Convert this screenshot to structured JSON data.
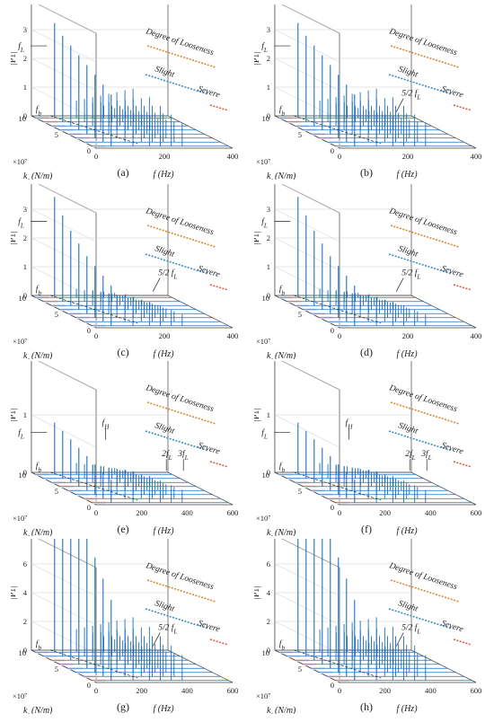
{
  "chart_data": [
    {
      "type": "line",
      "caption": "(a)",
      "zlabel": "|P1|",
      "zscale": "×10⁻⁴",
      "zticks": [
        "0",
        "1",
        "2",
        "3",
        "4"
      ],
      "zmax": 4,
      "ylabel": "k_l (N/m)",
      "yscale": "×10⁷",
      "yticks": [
        "10",
        "5",
        "0"
      ],
      "xlabel": "f (Hz)",
      "xticks": [
        "0",
        "200",
        "400"
      ],
      "xmax": 400,
      "legend": {
        "title": "Degree of Looseness",
        "slight": "Slight",
        "severe": "Severe"
      },
      "annotations": {
        "fL": "f_L",
        "fb": "f_b",
        "frac": ""
      },
      "peaks": [
        3.3,
        3.0,
        2.8,
        2.6,
        2.4,
        2.2,
        2.0,
        1.8
      ],
      "harm": [
        0.6,
        0.8,
        1.0,
        1.2,
        1.4,
        1.6,
        1.8,
        2.0
      ]
    },
    {
      "type": "line",
      "caption": "(b)",
      "zlabel": "|P1|",
      "zscale": "×10⁻⁴",
      "zticks": [
        "0",
        "1",
        "2",
        "3",
        "4"
      ],
      "zmax": 4,
      "ylabel": "k_l (N/m)",
      "yscale": "×10⁷",
      "yticks": [
        "10",
        "5",
        "0"
      ],
      "xlabel": "f (Hz)",
      "xticks": [
        "0",
        "200",
        "400"
      ],
      "xmax": 400,
      "legend": {
        "title": "Degree of Looseness",
        "slight": "Slight",
        "severe": "Severe"
      },
      "annotations": {
        "fL": "f_L",
        "fb": "f_b",
        "frac": "5/2 f_L"
      },
      "peaks": [
        3.3,
        3.0,
        2.8,
        2.6,
        2.4,
        2.2,
        2.0,
        1.8
      ],
      "harm": [
        0.6,
        0.8,
        1.0,
        1.2,
        1.4,
        1.6,
        1.8,
        2.0
      ]
    },
    {
      "type": "line",
      "caption": "(c)",
      "zlabel": "|P1|",
      "zscale": "×10⁻³",
      "zticks": [
        "0",
        "1",
        "2",
        "3",
        "4"
      ],
      "zmax": 4,
      "ylabel": "k_l (N/m)",
      "yscale": "×10⁷",
      "yticks": [
        "10",
        "5",
        "0"
      ],
      "xlabel": "f (Hz)",
      "xticks": [
        "0",
        "200",
        "400"
      ],
      "xmax": 400,
      "legend": {
        "title": "Degree of Looseness",
        "slight": "Slight",
        "severe": "Severe"
      },
      "annotations": {
        "fL": "f_L",
        "fb": "f_b",
        "frac": "5/2 f_L"
      },
      "peaks": [
        3.5,
        3.0,
        2.6,
        2.3,
        2.0,
        1.8,
        1.6,
        1.4
      ],
      "harm": [
        0.3,
        0.4,
        0.5,
        0.6,
        0.7,
        0.8,
        0.9,
        1.0
      ]
    },
    {
      "type": "line",
      "caption": "(d)",
      "zlabel": "|P1|",
      "zscale": "×10⁻³",
      "zticks": [
        "0",
        "1",
        "2",
        "3",
        "4"
      ],
      "zmax": 4,
      "ylabel": "k_l (N/m)",
      "yscale": "×10⁷",
      "yticks": [
        "10",
        "5",
        "0"
      ],
      "xlabel": "f (Hz)",
      "xticks": [
        "0",
        "200",
        "400"
      ],
      "xmax": 400,
      "legend": {
        "title": "Degree of Looseness",
        "slight": "Slight",
        "severe": "Severe"
      },
      "annotations": {
        "fL": "f_L",
        "fb": "f_b",
        "frac": "5/2 f_L"
      },
      "peaks": [
        3.5,
        3.0,
        2.6,
        2.3,
        2.0,
        1.8,
        1.6,
        1.4
      ],
      "harm": [
        0.3,
        0.4,
        0.5,
        0.6,
        0.7,
        0.8,
        0.9,
        1.0
      ]
    },
    {
      "type": "line",
      "caption": "(e)",
      "zlabel": "|P1|",
      "zscale": "×10⁻⁴",
      "zticks": [
        "0",
        "1",
        "2"
      ],
      "zmax": 2,
      "ylabel": "k_l (N/m)",
      "yscale": "×10⁷",
      "yticks": [
        "10",
        "5",
        "0"
      ],
      "xlabel": "f (Hz)",
      "xticks": [
        "0",
        "200",
        "400",
        "600"
      ],
      "xmax": 600,
      "legend": {
        "title": "Degree of Looseness",
        "slight": "Slight",
        "severe": "Severe"
      },
      "annotations": {
        "fL": "f_L",
        "fb": "f_b",
        "fH": "f_H",
        "twofL": "2f_L",
        "threefL": "3f_L"
      },
      "peaks": [
        1.8,
        1.65,
        1.5,
        1.35,
        1.2,
        1.05,
        0.9,
        0.8
      ],
      "harm": [
        0.4,
        0.5,
        0.6,
        0.7,
        0.8,
        0.9,
        1.0,
        1.1
      ]
    },
    {
      "type": "line",
      "caption": "(f)",
      "zlabel": "|P1|",
      "zscale": "×10⁻⁴",
      "zticks": [
        "0",
        "1",
        "2"
      ],
      "zmax": 2,
      "ylabel": "k_l (N/m)",
      "yscale": "×10⁷",
      "yticks": [
        "10",
        "5",
        "0"
      ],
      "xlabel": "f (Hz)",
      "xticks": [
        "0",
        "200",
        "400",
        "600"
      ],
      "xmax": 600,
      "legend": {
        "title": "Degree of Looseness",
        "slight": "Slight",
        "severe": "Severe"
      },
      "annotations": {
        "fL": "f_L",
        "fb": "f_b",
        "fH": "f_H",
        "twofL": "2f_L",
        "threefL": "3f_L"
      },
      "peaks": [
        1.8,
        1.65,
        1.5,
        1.35,
        1.2,
        1.05,
        0.9,
        0.8
      ],
      "harm": [
        0.4,
        0.5,
        0.6,
        0.7,
        0.8,
        0.9,
        1.0,
        1.1
      ]
    },
    {
      "type": "line",
      "caption": "(g)",
      "zlabel": "|P1|",
      "zscale": "×10⁻⁴",
      "zticks": [
        "0",
        "2",
        "4",
        "6",
        "8"
      ],
      "zmax": 8,
      "ylabel": "k_l (N/m)",
      "yscale": "×10⁷",
      "yticks": [
        "10",
        "5",
        "0"
      ],
      "xlabel": "f (Hz)",
      "xticks": [
        "0",
        "200",
        "400",
        "600"
      ],
      "xmax": 600,
      "legend": {
        "title": "Degree of Looseness",
        "slight": "Slight",
        "severe": "Severe"
      },
      "annotations": {
        "fL": "f_L",
        "fb": "f_b",
        "frac": "5/2 f_L"
      },
      "peaks": [
        7.0,
        6.4,
        5.8,
        5.2,
        4.6,
        4.0,
        3.4,
        2.8
      ],
      "harm": [
        0.8,
        1.0,
        1.2,
        1.4,
        1.6,
        1.8,
        2.0,
        2.2
      ]
    },
    {
      "type": "line",
      "caption": "(h)",
      "zlabel": "|P1|",
      "zscale": "×10⁻⁴",
      "zticks": [
        "0",
        "2",
        "4",
        "6",
        "8"
      ],
      "zmax": 8,
      "ylabel": "k_l (N/m)",
      "yscale": "×10⁷",
      "yticks": [
        "10",
        "5",
        "0"
      ],
      "xlabel": "f (Hz)",
      "xticks": [
        "0",
        "200",
        "400",
        "600"
      ],
      "xmax": 600,
      "legend": {
        "title": "Degree of Looseness",
        "slight": "Slight",
        "severe": "Severe"
      },
      "annotations": {
        "fL": "f_L",
        "fb": "f_b",
        "frac": "5/2 f_L"
      },
      "peaks": [
        7.0,
        6.4,
        5.8,
        5.2,
        4.6,
        4.0,
        3.4,
        2.8
      ],
      "harm": [
        0.8,
        1.0,
        1.2,
        1.4,
        1.6,
        1.8,
        2.0,
        2.2
      ]
    }
  ],
  "colors": {
    "series": "#1f6fbf",
    "axis": "#444444",
    "grid": "#cccccc",
    "arrowOrange": "#d98a3a",
    "arrowBlue": "#3b8fbf",
    "arrowRed": "#e05a45",
    "floorPink": "#f7e6ea"
  }
}
